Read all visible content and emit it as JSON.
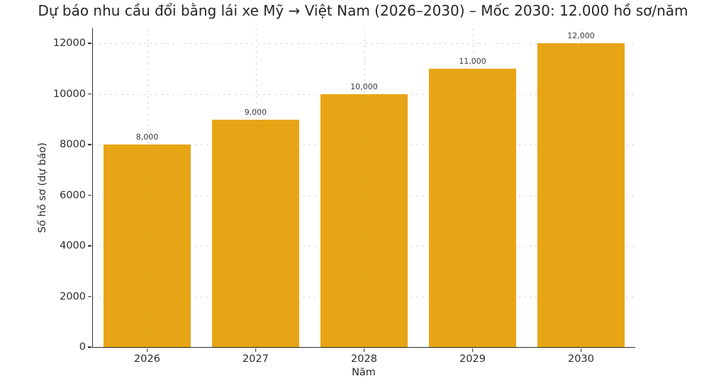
{
  "chart_data": {
    "type": "bar",
    "title": "Dự báo nhu cầu đổi bằng lái xe Mỹ → Việt Nam (2026–2030) – Mốc 2030: 12.000 hồ sơ/năm",
    "xlabel": "Năm",
    "ylabel": "Số hồ sơ (dự báo)",
    "categories": [
      "2026",
      "2027",
      "2028",
      "2029",
      "2030"
    ],
    "values": [
      8000,
      9000,
      10000,
      11000,
      12000
    ],
    "value_labels": [
      "8,000",
      "9,000",
      "10,000",
      "11,000",
      "12,000"
    ],
    "yticks": [
      0,
      2000,
      4000,
      6000,
      8000,
      10000,
      12000
    ],
    "ytick_labels": [
      "0",
      "2000",
      "4000",
      "6000",
      "8000",
      "10000",
      "12000"
    ],
    "ylim": [
      0,
      12600
    ],
    "bar_color": "#E7A516",
    "bar_width_fraction": 0.8,
    "grid": "dashed, horizontal and vertical",
    "legend": "none",
    "text_color": "#2b2b2b"
  }
}
